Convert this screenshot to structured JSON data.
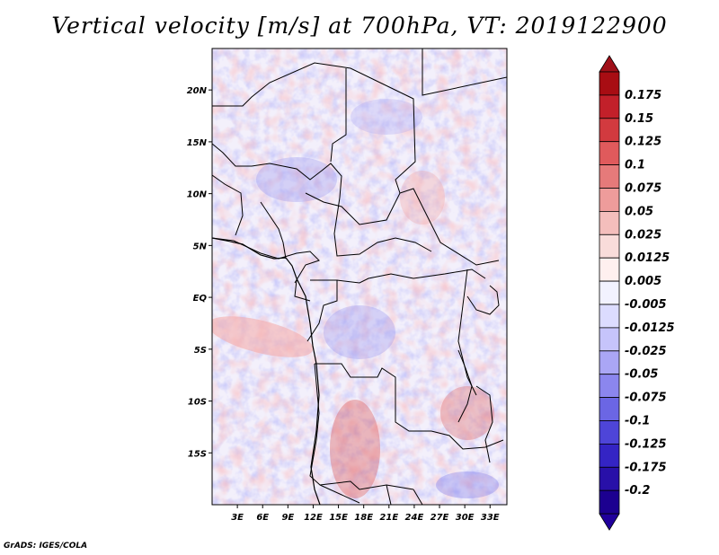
{
  "title": "Vertical velocity [m/s] at 700hPa, VT: 2019122900",
  "credit": "GrADS: IGES/COLA",
  "map": {
    "x_ticks": [
      "3E",
      "6E",
      "9E",
      "12E",
      "15E",
      "18E",
      "21E",
      "24E",
      "27E",
      "30E",
      "33E"
    ],
    "y_ticks": [
      "20N",
      "15N",
      "10N",
      "5N",
      "EQ",
      "5S",
      "10S",
      "15S"
    ],
    "lon_range": [
      0,
      35
    ],
    "lat_range": [
      -20,
      24
    ]
  },
  "colorbar": {
    "labels": [
      "0.175",
      "0.15",
      "0.125",
      "0.1",
      "0.075",
      "0.05",
      "0.025",
      "0.0125",
      "0.005",
      "-0.005",
      "-0.0125",
      "-0.025",
      "-0.05",
      "-0.075",
      "-0.1",
      "-0.125",
      "-0.175",
      "-0.2"
    ],
    "colors": [
      "#a80d13",
      "#c2202a",
      "#d23a3f",
      "#e05a5c",
      "#e67a7a",
      "#ee9c9b",
      "#f4bebc",
      "#f9dcda",
      "#fff0ef",
      "#f2f2ff",
      "#dcdcff",
      "#c6c4fb",
      "#aaa6f5",
      "#8b86ee",
      "#6b66e4",
      "#4e45d8",
      "#3424c4",
      "#2810a8",
      "#1c0090"
    ],
    "top_color": "#a01019",
    "bottom_color": "#20009c"
  }
}
